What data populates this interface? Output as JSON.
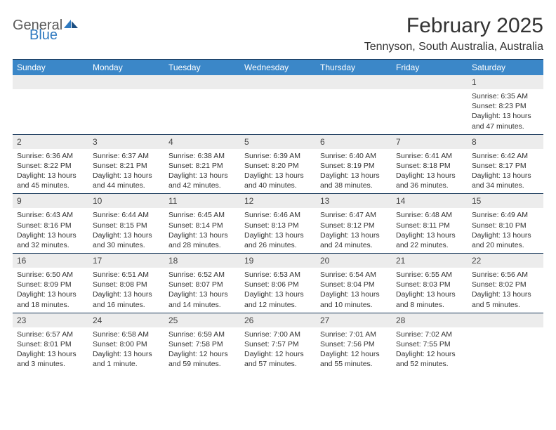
{
  "logo": {
    "word1": "General",
    "word2": "Blue"
  },
  "title": "February 2025",
  "location": "Tennyson, South Australia, Australia",
  "colors": {
    "header_bar": "#3b87c8",
    "header_text": "#ffffff",
    "rule": "#1a3a5c",
    "daynum_bg": "#ececec",
    "text": "#333333",
    "logo_blue": "#2f7ac0",
    "logo_gray": "#5a5a5a"
  },
  "day_names": [
    "Sunday",
    "Monday",
    "Tuesday",
    "Wednesday",
    "Thursday",
    "Friday",
    "Saturday"
  ],
  "weeks": [
    [
      {
        "n": "",
        "sunrise": "",
        "sunset": "",
        "daylight": ""
      },
      {
        "n": "",
        "sunrise": "",
        "sunset": "",
        "daylight": ""
      },
      {
        "n": "",
        "sunrise": "",
        "sunset": "",
        "daylight": ""
      },
      {
        "n": "",
        "sunrise": "",
        "sunset": "",
        "daylight": ""
      },
      {
        "n": "",
        "sunrise": "",
        "sunset": "",
        "daylight": ""
      },
      {
        "n": "",
        "sunrise": "",
        "sunset": "",
        "daylight": ""
      },
      {
        "n": "1",
        "sunrise": "Sunrise: 6:35 AM",
        "sunset": "Sunset: 8:23 PM",
        "daylight": "Daylight: 13 hours and 47 minutes."
      }
    ],
    [
      {
        "n": "2",
        "sunrise": "Sunrise: 6:36 AM",
        "sunset": "Sunset: 8:22 PM",
        "daylight": "Daylight: 13 hours and 45 minutes."
      },
      {
        "n": "3",
        "sunrise": "Sunrise: 6:37 AM",
        "sunset": "Sunset: 8:21 PM",
        "daylight": "Daylight: 13 hours and 44 minutes."
      },
      {
        "n": "4",
        "sunrise": "Sunrise: 6:38 AM",
        "sunset": "Sunset: 8:21 PM",
        "daylight": "Daylight: 13 hours and 42 minutes."
      },
      {
        "n": "5",
        "sunrise": "Sunrise: 6:39 AM",
        "sunset": "Sunset: 8:20 PM",
        "daylight": "Daylight: 13 hours and 40 minutes."
      },
      {
        "n": "6",
        "sunrise": "Sunrise: 6:40 AM",
        "sunset": "Sunset: 8:19 PM",
        "daylight": "Daylight: 13 hours and 38 minutes."
      },
      {
        "n": "7",
        "sunrise": "Sunrise: 6:41 AM",
        "sunset": "Sunset: 8:18 PM",
        "daylight": "Daylight: 13 hours and 36 minutes."
      },
      {
        "n": "8",
        "sunrise": "Sunrise: 6:42 AM",
        "sunset": "Sunset: 8:17 PM",
        "daylight": "Daylight: 13 hours and 34 minutes."
      }
    ],
    [
      {
        "n": "9",
        "sunrise": "Sunrise: 6:43 AM",
        "sunset": "Sunset: 8:16 PM",
        "daylight": "Daylight: 13 hours and 32 minutes."
      },
      {
        "n": "10",
        "sunrise": "Sunrise: 6:44 AM",
        "sunset": "Sunset: 8:15 PM",
        "daylight": "Daylight: 13 hours and 30 minutes."
      },
      {
        "n": "11",
        "sunrise": "Sunrise: 6:45 AM",
        "sunset": "Sunset: 8:14 PM",
        "daylight": "Daylight: 13 hours and 28 minutes."
      },
      {
        "n": "12",
        "sunrise": "Sunrise: 6:46 AM",
        "sunset": "Sunset: 8:13 PM",
        "daylight": "Daylight: 13 hours and 26 minutes."
      },
      {
        "n": "13",
        "sunrise": "Sunrise: 6:47 AM",
        "sunset": "Sunset: 8:12 PM",
        "daylight": "Daylight: 13 hours and 24 minutes."
      },
      {
        "n": "14",
        "sunrise": "Sunrise: 6:48 AM",
        "sunset": "Sunset: 8:11 PM",
        "daylight": "Daylight: 13 hours and 22 minutes."
      },
      {
        "n": "15",
        "sunrise": "Sunrise: 6:49 AM",
        "sunset": "Sunset: 8:10 PM",
        "daylight": "Daylight: 13 hours and 20 minutes."
      }
    ],
    [
      {
        "n": "16",
        "sunrise": "Sunrise: 6:50 AM",
        "sunset": "Sunset: 8:09 PM",
        "daylight": "Daylight: 13 hours and 18 minutes."
      },
      {
        "n": "17",
        "sunrise": "Sunrise: 6:51 AM",
        "sunset": "Sunset: 8:08 PM",
        "daylight": "Daylight: 13 hours and 16 minutes."
      },
      {
        "n": "18",
        "sunrise": "Sunrise: 6:52 AM",
        "sunset": "Sunset: 8:07 PM",
        "daylight": "Daylight: 13 hours and 14 minutes."
      },
      {
        "n": "19",
        "sunrise": "Sunrise: 6:53 AM",
        "sunset": "Sunset: 8:06 PM",
        "daylight": "Daylight: 13 hours and 12 minutes."
      },
      {
        "n": "20",
        "sunrise": "Sunrise: 6:54 AM",
        "sunset": "Sunset: 8:04 PM",
        "daylight": "Daylight: 13 hours and 10 minutes."
      },
      {
        "n": "21",
        "sunrise": "Sunrise: 6:55 AM",
        "sunset": "Sunset: 8:03 PM",
        "daylight": "Daylight: 13 hours and 8 minutes."
      },
      {
        "n": "22",
        "sunrise": "Sunrise: 6:56 AM",
        "sunset": "Sunset: 8:02 PM",
        "daylight": "Daylight: 13 hours and 5 minutes."
      }
    ],
    [
      {
        "n": "23",
        "sunrise": "Sunrise: 6:57 AM",
        "sunset": "Sunset: 8:01 PM",
        "daylight": "Daylight: 13 hours and 3 minutes."
      },
      {
        "n": "24",
        "sunrise": "Sunrise: 6:58 AM",
        "sunset": "Sunset: 8:00 PM",
        "daylight": "Daylight: 13 hours and 1 minute."
      },
      {
        "n": "25",
        "sunrise": "Sunrise: 6:59 AM",
        "sunset": "Sunset: 7:58 PM",
        "daylight": "Daylight: 12 hours and 59 minutes."
      },
      {
        "n": "26",
        "sunrise": "Sunrise: 7:00 AM",
        "sunset": "Sunset: 7:57 PM",
        "daylight": "Daylight: 12 hours and 57 minutes."
      },
      {
        "n": "27",
        "sunrise": "Sunrise: 7:01 AM",
        "sunset": "Sunset: 7:56 PM",
        "daylight": "Daylight: 12 hours and 55 minutes."
      },
      {
        "n": "28",
        "sunrise": "Sunrise: 7:02 AM",
        "sunset": "Sunset: 7:55 PM",
        "daylight": "Daylight: 12 hours and 52 minutes."
      },
      {
        "n": "",
        "sunrise": "",
        "sunset": "",
        "daylight": ""
      }
    ]
  ]
}
